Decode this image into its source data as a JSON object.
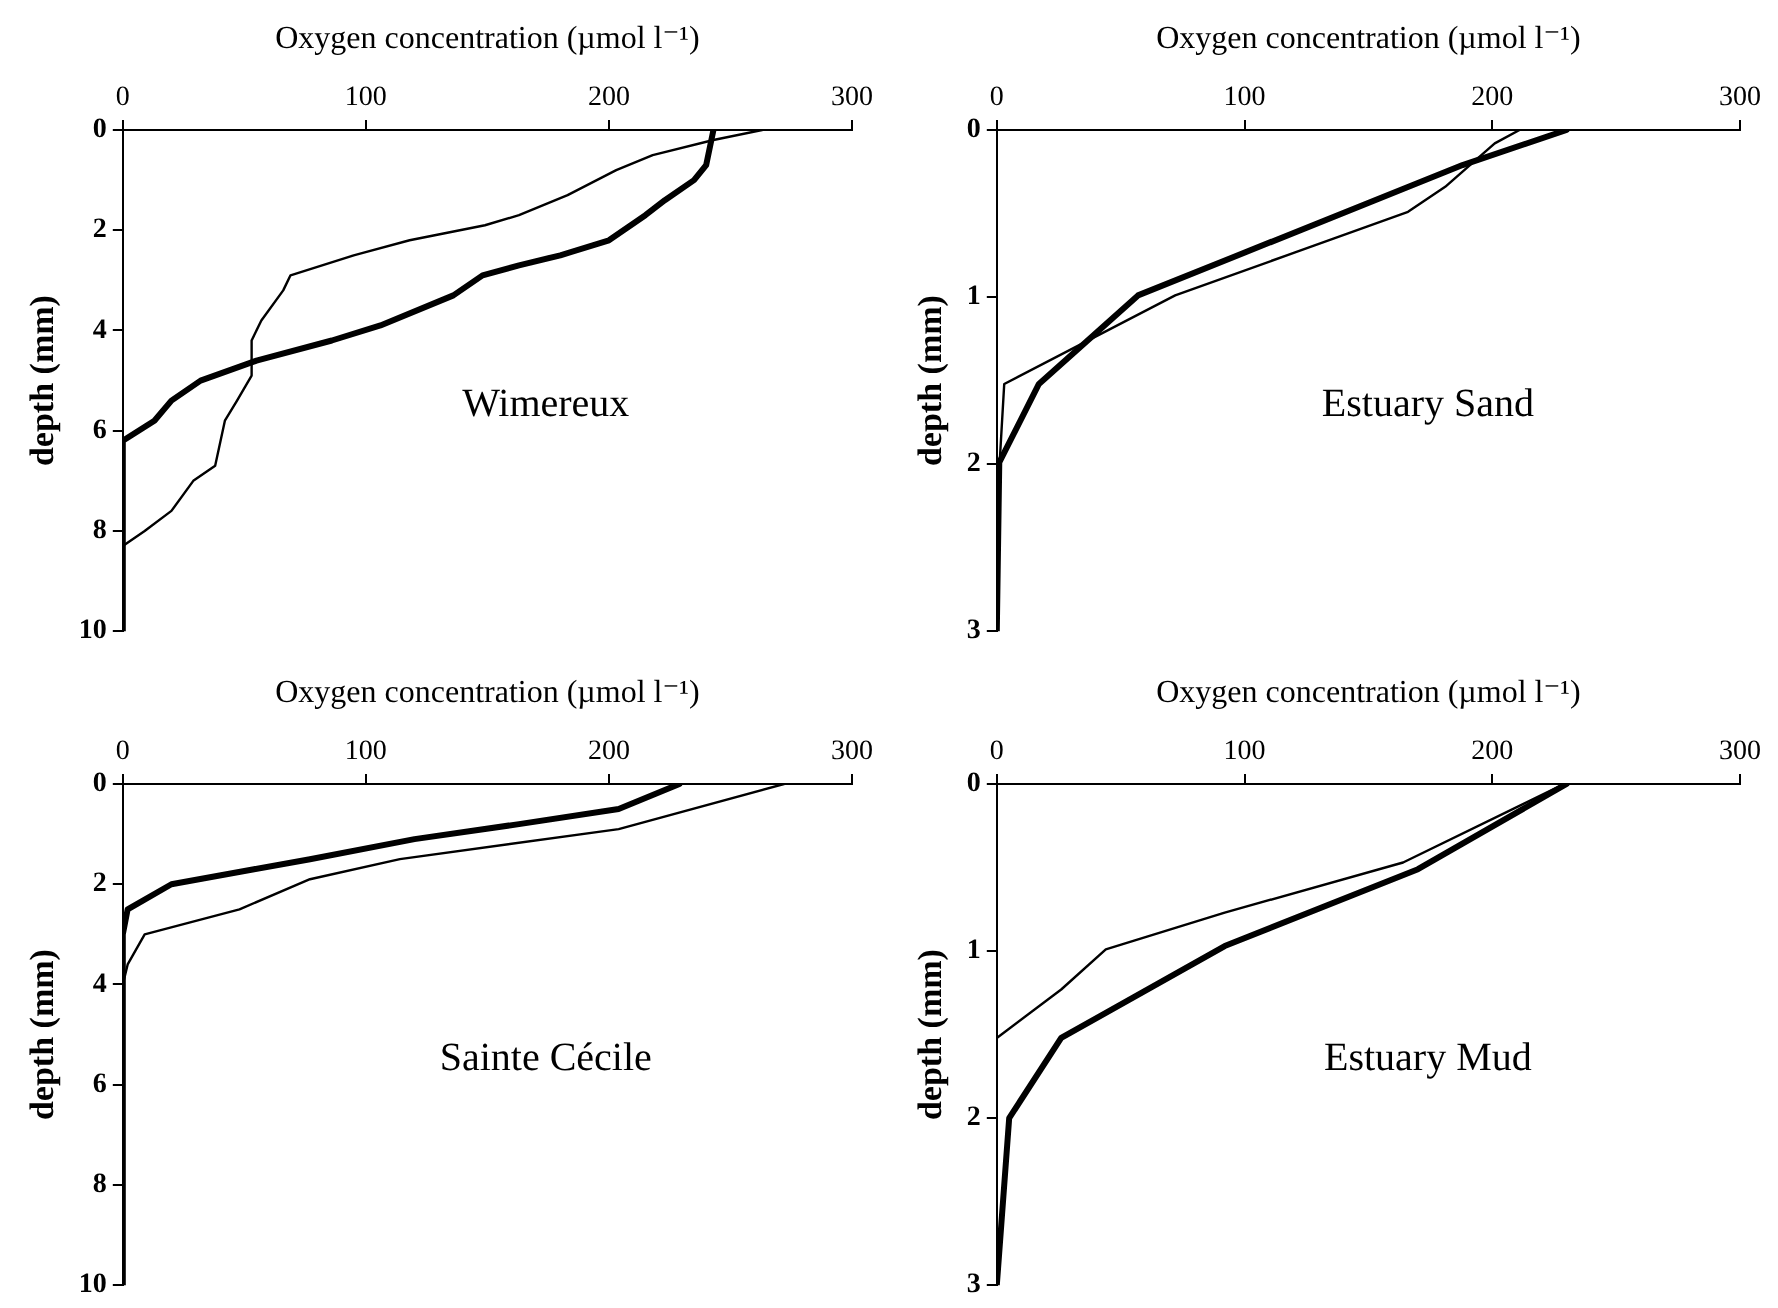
{
  "chart_data": [
    {
      "type": "line",
      "xlabel": "Oxygen concentration (µmol l⁻¹)",
      "ylabel": "depth (mm)",
      "xlim": [
        0,
        300
      ],
      "xticks": [
        0,
        100,
        200,
        300
      ],
      "ylim": [
        10,
        0
      ],
      "yticks": [
        0,
        2,
        4,
        6,
        8,
        10
      ],
      "grid": false,
      "legend": false,
      "marker": "none",
      "line_style": "solid",
      "annotations": [
        "Wimereux"
      ],
      "series": [
        {
          "color": "#000000",
          "x": [
            243,
            240,
            235,
            223,
            215,
            200,
            180,
            163,
            148,
            145,
            136,
            106,
            86,
            55,
            32,
            20,
            13,
            0,
            0
          ],
          "values": [
            0,
            0.7,
            1.0,
            1.4,
            1.7,
            2.2,
            2.5,
            2.7,
            2.9,
            3.0,
            3.3,
            3.9,
            4.2,
            4.6,
            5.0,
            5.4,
            5.8,
            6.2,
            10
          ]
        },
        {
          "color": "#000000",
          "x": [
            263,
            243,
            218,
            203,
            183,
            163,
            149,
            118,
            95,
            69,
            66,
            57,
            53,
            53,
            47,
            42,
            38,
            29,
            20,
            9,
            0,
            0
          ],
          "values": [
            0,
            0.2,
            0.5,
            0.8,
            1.3,
            1.7,
            1.9,
            2.2,
            2.5,
            2.9,
            3.2,
            3.8,
            4.2,
            4.9,
            5.4,
            5.8,
            6.7,
            7.0,
            7.6,
            8.0,
            8.3,
            10
          ]
        }
      ]
    },
    {
      "type": "line",
      "xlabel": "Oxygen concentration (µmol l⁻¹)",
      "ylabel": "depth (mm)",
      "xlim": [
        0,
        300
      ],
      "xticks": [
        0,
        100,
        200,
        300
      ],
      "ylim": [
        3,
        0
      ],
      "yticks": [
        0,
        1,
        2,
        3
      ],
      "grid": false,
      "legend": false,
      "marker": "none",
      "line_style": "solid",
      "annotations": [
        "Estuary Sand"
      ],
      "series": [
        {
          "color": "#000000",
          "x": [
            230,
            188,
            57,
            17,
            1,
            0
          ],
          "values": [
            0,
            0.21,
            0.99,
            1.52,
            1.99,
            3
          ]
        },
        {
          "color": "#000000",
          "x": [
            211,
            201,
            181,
            166,
            72,
            3,
            1,
            0
          ],
          "values": [
            0,
            0.08,
            0.34,
            0.49,
            0.99,
            1.52,
            2.03,
            3
          ]
        }
      ]
    },
    {
      "type": "line",
      "xlabel": "Oxygen concentration (µmol l⁻¹)",
      "ylabel": "depth (mm)",
      "xlim": [
        0,
        300
      ],
      "xticks": [
        0,
        100,
        200,
        300
      ],
      "ylim": [
        10,
        0
      ],
      "yticks": [
        0,
        2,
        4,
        6,
        8,
        10
      ],
      "grid": false,
      "legend": false,
      "marker": "none",
      "line_style": "solid",
      "annotations": [
        "Sainte Cécile"
      ],
      "series": [
        {
          "color": "#000000",
          "x": [
            229,
            204,
            163,
            120,
            77,
            54,
            20,
            2,
            0,
            0
          ],
          "values": [
            0,
            0.5,
            0.8,
            1.1,
            1.5,
            1.7,
            2.0,
            2.5,
            3.0,
            10
          ]
        },
        {
          "color": "#000000",
          "x": [
            272,
            204,
            114,
            77,
            48,
            9,
            2,
            0,
            0
          ],
          "values": [
            0,
            0.9,
            1.5,
            1.9,
            2.5,
            3.0,
            3.6,
            4.0,
            10
          ]
        }
      ]
    },
    {
      "type": "line",
      "xlabel": "Oxygen concentration (µmol l⁻¹)",
      "ylabel": "depth (mm)",
      "xlim": [
        0,
        300
      ],
      "xticks": [
        0,
        100,
        200,
        300
      ],
      "ylim": [
        3,
        0
      ],
      "yticks": [
        0,
        1,
        2,
        3
      ],
      "grid": false,
      "legend": false,
      "marker": "none",
      "line_style": "solid",
      "annotations": [
        "Estuary Mud"
      ],
      "series": [
        {
          "color": "#000000",
          "x": [
            230,
            170,
            92,
            26,
            5,
            0
          ],
          "values": [
            0,
            0.51,
            0.97,
            1.52,
            2.0,
            3
          ]
        },
        {
          "color": "#000000",
          "x": [
            229,
            164,
            92,
            44,
            26,
            0,
            0
          ],
          "values": [
            0,
            0.47,
            0.77,
            0.99,
            1.23,
            1.52,
            3
          ]
        }
      ]
    }
  ]
}
